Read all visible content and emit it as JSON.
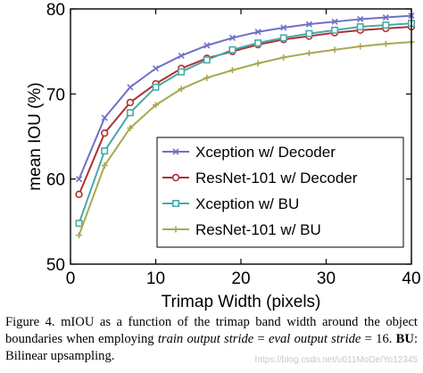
{
  "chart_data": {
    "type": "line",
    "title": "",
    "xlabel": "Trimap Width (pixels)",
    "ylabel": "mean IOU (%)",
    "xlim": [
      0,
      40
    ],
    "ylim": [
      50,
      80
    ],
    "xticks": [
      0,
      10,
      20,
      30,
      40
    ],
    "yticks": [
      50,
      60,
      70,
      80
    ],
    "grid": false,
    "legend_position": "bottom-right",
    "x": [
      1,
      4,
      7,
      10,
      13,
      16,
      19,
      22,
      25,
      28,
      31,
      34,
      37,
      40
    ],
    "series": [
      {
        "name": "Xception w/ Decoder",
        "color": "#7070c8",
        "marker": "x",
        "values": [
          60.0,
          67.2,
          70.8,
          73.0,
          74.5,
          75.7,
          76.6,
          77.3,
          77.8,
          78.2,
          78.5,
          78.8,
          79.0,
          79.2
        ]
      },
      {
        "name": "ResNet-101 w/ Decoder",
        "color": "#b03030",
        "marker": "circle",
        "values": [
          58.2,
          65.4,
          69.0,
          71.2,
          73.0,
          74.2,
          75.0,
          75.8,
          76.4,
          76.8,
          77.2,
          77.5,
          77.7,
          77.9
        ]
      },
      {
        "name": "Xception w/ BU",
        "color": "#4aa8a8",
        "marker": "square",
        "values": [
          54.8,
          63.3,
          67.8,
          70.8,
          72.6,
          74.0,
          75.2,
          76.0,
          76.6,
          77.1,
          77.5,
          77.9,
          78.1,
          78.3
        ]
      },
      {
        "name": "ResNet-101 w/ BU",
        "color": "#a8a850",
        "marker": "plus",
        "values": [
          53.4,
          61.6,
          66.0,
          68.7,
          70.6,
          71.9,
          72.8,
          73.6,
          74.3,
          74.8,
          75.2,
          75.6,
          75.9,
          76.1
        ]
      }
    ]
  },
  "caption": {
    "label": "Figure 4.",
    "part1": " mIOU as a function of the trimap band width around the object boundaries when employing ",
    "italic1": "train output stride",
    "part2": " = ",
    "italic2": "eval output stride",
    "part3": " = 16. ",
    "bold1": "BU",
    "part4": ": Bilinear upsampling."
  },
  "watermark": "https://blog.csdn.net/u011MoDe/Yo12345"
}
